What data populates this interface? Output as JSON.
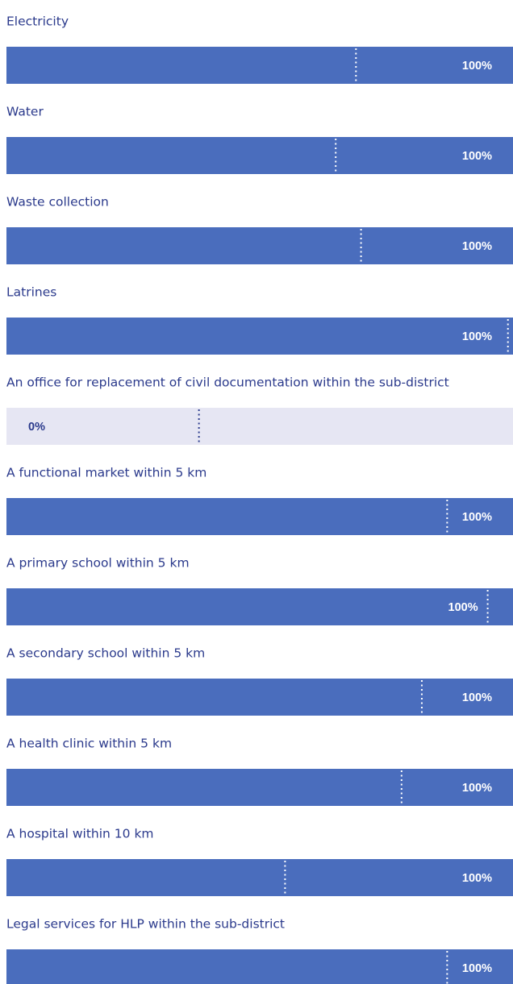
{
  "chart_data": {
    "type": "bar",
    "orientation": "horizontal",
    "categories": [
      "Electricity",
      "Water",
      "Waste collection",
      "Latrines",
      "An office for replacement of civil documentation within the sub-district",
      "A functional market within 5 km",
      "A primary school within 5 km",
      "A secondary school within 5 km",
      "A health clinic within 5 km",
      "A hospital within 10 km",
      "Legal services for HLP within the sub-district"
    ],
    "values": [
      100,
      100,
      100,
      100,
      0,
      100,
      100,
      100,
      100,
      100,
      100
    ],
    "value_labels": [
      "100%",
      "100%",
      "100%",
      "100%",
      "0%",
      "100%",
      "100%",
      "100%",
      "100%",
      "100%",
      "100%"
    ],
    "reference_values": [
      69,
      65,
      70,
      99,
      38,
      87,
      95,
      82,
      78,
      55,
      87
    ],
    "xlim": [
      0,
      100
    ],
    "color": "#4a6dbd",
    "track_color": "#e6e6f3"
  }
}
